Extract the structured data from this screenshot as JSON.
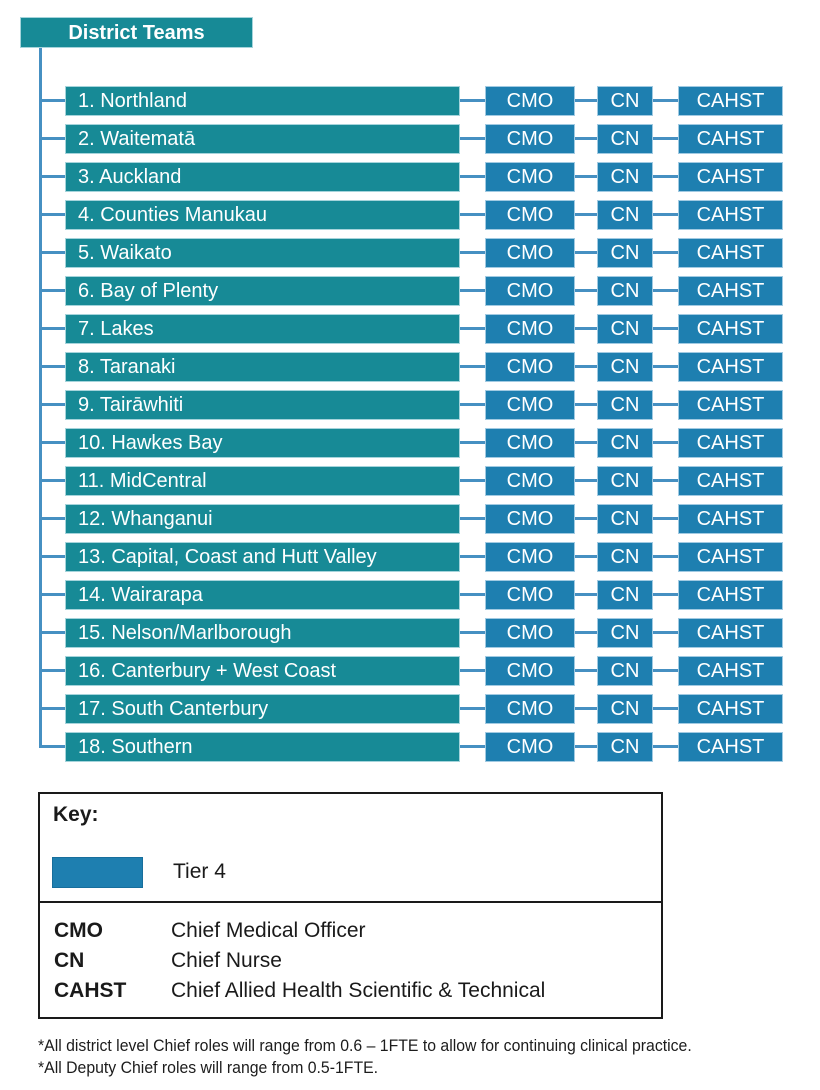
{
  "title": "District Teams",
  "colors": {
    "teal": "#178A96",
    "blue": "#1E7FB0",
    "line": "#4690C2",
    "ink": "#1A1A1A"
  },
  "roles": [
    "CMO",
    "CN",
    "CAHST"
  ],
  "districts": [
    "1. Northland",
    "2. Waitematā",
    "3. Auckland",
    "4. Counties Manukau",
    "5. Waikato",
    "6. Bay of Plenty",
    "7. Lakes",
    "8. Taranaki",
    "9. Tairāwhiti",
    "10. Hawkes Bay",
    "11. MidCentral",
    "12. Whanganui",
    "13. Capital, Coast and Hutt Valley",
    "14. Wairarapa",
    "15. Nelson/Marlborough",
    "16. Canterbury + West Coast",
    "17. South Canterbury",
    "18. Southern"
  ],
  "key": {
    "title": "Key:",
    "tiers": [
      {
        "label": "Tier 4",
        "color": "#1E7FB0"
      }
    ],
    "abbreviations": [
      {
        "abbr": "CMO",
        "meaning": "Chief Medical Officer"
      },
      {
        "abbr": "CN",
        "meaning": "Chief Nurse"
      },
      {
        "abbr": "CAHST",
        "meaning": "Chief Allied Health Scientific & Technical"
      }
    ]
  },
  "footnotes": [
    "*All district level Chief roles will range from 0.6 – 1FTE to allow for continuing clinical practice.",
    "*All Deputy Chief roles will range from 0.5-1FTE."
  ]
}
